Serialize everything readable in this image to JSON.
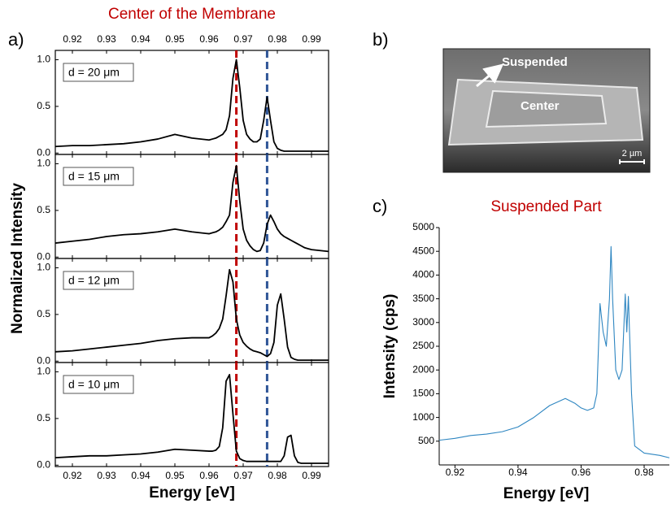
{
  "panel_labels": [
    "a)",
    "b)",
    "c)"
  ],
  "sem_image": {
    "labels": [
      "Suspended",
      "Center"
    ],
    "scale_bar": "2 µm"
  },
  "chart_data": [
    {
      "type": "line",
      "title": "Center of the Membrane",
      "ylabel": "Normalized Intensity",
      "annotation": "d = 20 μm",
      "top_tick_labels": true,
      "bottom_tick_labels": false,
      "color": "#000000",
      "xlim": [
        0.915,
        0.995
      ],
      "xticks": [
        0.92,
        0.93,
        0.94,
        0.95,
        0.96,
        0.97,
        0.98,
        0.99
      ],
      "ylim": [
        -0.015,
        1.1
      ],
      "yticks": [
        {
          "value": 0,
          "label": "0.0"
        },
        0.5,
        {
          "value": 1,
          "label": "1.0"
        }
      ],
      "vlines": [
        {
          "x": 0.968,
          "color": "#c00000"
        },
        {
          "x": 0.977,
          "color": "#2f5597"
        }
      ],
      "x": [
        0.915,
        0.92,
        0.925,
        0.93,
        0.935,
        0.94,
        0.945,
        0.95,
        0.955,
        0.96,
        0.961,
        0.962,
        0.963,
        0.964,
        0.965,
        0.966,
        0.967,
        0.968,
        0.969,
        0.97,
        0.971,
        0.972,
        0.973,
        0.974,
        0.975,
        0.976,
        0.977,
        0.978,
        0.979,
        0.98,
        0.981,
        0.982,
        0.983,
        0.984,
        0.985,
        0.986,
        0.987,
        0.988,
        0.989,
        0.99,
        0.995
      ],
      "values": [
        0.07,
        0.08,
        0.08,
        0.09,
        0.1,
        0.12,
        0.15,
        0.2,
        0.16,
        0.14,
        0.15,
        0.16,
        0.18,
        0.2,
        0.25,
        0.4,
        0.8,
        1.0,
        0.7,
        0.35,
        0.2,
        0.15,
        0.12,
        0.12,
        0.15,
        0.35,
        0.6,
        0.35,
        0.12,
        0.05,
        0.03,
        0.02,
        0.02,
        0.02,
        0.02,
        0.02,
        0.02,
        0.02,
        0.02,
        0.02,
        0.02
      ]
    },
    {
      "type": "line",
      "annotation": "d = 15 μm",
      "top_tick_labels": false,
      "bottom_tick_labels": false,
      "color": "#000000",
      "xlim": [
        0.915,
        0.995
      ],
      "xticks": [
        0.92,
        0.93,
        0.94,
        0.95,
        0.96,
        0.97,
        0.98,
        0.99
      ],
      "ylim": [
        -0.015,
        1.1
      ],
      "yticks": [
        {
          "value": 0,
          "label": "0.0"
        },
        0.5,
        {
          "value": 1,
          "label": "1.0"
        }
      ],
      "vlines": [
        {
          "x": 0.968,
          "color": "#c00000"
        },
        {
          "x": 0.977,
          "color": "#2f5597"
        }
      ],
      "x": [
        0.915,
        0.92,
        0.925,
        0.93,
        0.935,
        0.94,
        0.945,
        0.95,
        0.955,
        0.96,
        0.961,
        0.962,
        0.963,
        0.964,
        0.965,
        0.966,
        0.967,
        0.968,
        0.969,
        0.97,
        0.971,
        0.972,
        0.973,
        0.974,
        0.975,
        0.976,
        0.977,
        0.978,
        0.979,
        0.98,
        0.981,
        0.982,
        0.983,
        0.984,
        0.985,
        0.986,
        0.987,
        0.988,
        0.989,
        0.99,
        0.995
      ],
      "values": [
        0.15,
        0.17,
        0.19,
        0.22,
        0.24,
        0.25,
        0.27,
        0.3,
        0.27,
        0.25,
        0.26,
        0.27,
        0.29,
        0.32,
        0.38,
        0.45,
        0.8,
        0.98,
        0.6,
        0.3,
        0.18,
        0.12,
        0.08,
        0.06,
        0.07,
        0.15,
        0.35,
        0.45,
        0.38,
        0.3,
        0.25,
        0.22,
        0.2,
        0.18,
        0.16,
        0.14,
        0.12,
        0.1,
        0.09,
        0.08,
        0.06
      ]
    },
    {
      "type": "line",
      "annotation": "d = 12 μm",
      "top_tick_labels": false,
      "bottom_tick_labels": false,
      "color": "#000000",
      "xlim": [
        0.915,
        0.995
      ],
      "xticks": [
        0.92,
        0.93,
        0.94,
        0.95,
        0.96,
        0.97,
        0.98,
        0.99
      ],
      "ylim": [
        -0.015,
        1.1
      ],
      "yticks": [
        {
          "value": 0,
          "label": "0.0"
        },
        0.5,
        {
          "value": 1,
          "label": "1.0"
        }
      ],
      "vlines": [
        {
          "x": 0.968,
          "color": "#c00000"
        },
        {
          "x": 0.977,
          "color": "#2f5597"
        }
      ],
      "x": [
        0.915,
        0.92,
        0.925,
        0.93,
        0.935,
        0.94,
        0.945,
        0.95,
        0.955,
        0.96,
        0.961,
        0.962,
        0.963,
        0.964,
        0.965,
        0.966,
        0.967,
        0.968,
        0.969,
        0.97,
        0.971,
        0.972,
        0.973,
        0.974,
        0.975,
        0.976,
        0.977,
        0.978,
        0.979,
        0.98,
        0.981,
        0.982,
        0.983,
        0.984,
        0.985,
        0.986,
        0.987,
        0.988,
        0.989,
        0.99,
        0.995
      ],
      "values": [
        0.1,
        0.11,
        0.13,
        0.15,
        0.17,
        0.19,
        0.22,
        0.24,
        0.25,
        0.25,
        0.27,
        0.3,
        0.35,
        0.45,
        0.7,
        0.98,
        0.85,
        0.45,
        0.28,
        0.2,
        0.16,
        0.13,
        0.11,
        0.1,
        0.09,
        0.07,
        0.05,
        0.08,
        0.2,
        0.6,
        0.72,
        0.45,
        0.15,
        0.04,
        0.02,
        0.01,
        0.01,
        0.01,
        0.01,
        0.01,
        0.01
      ]
    },
    {
      "type": "line",
      "xlabel": "Energy [eV]",
      "annotation": "d = 10 μm",
      "top_tick_labels": false,
      "bottom_tick_labels": true,
      "color": "#000000",
      "xlim": [
        0.915,
        0.995
      ],
      "xticks": [
        0.92,
        0.93,
        0.94,
        0.95,
        0.96,
        0.97,
        0.98,
        0.99
      ],
      "ylim": [
        -0.015,
        1.1
      ],
      "yticks": [
        {
          "value": 0,
          "label": "0.0"
        },
        0.5,
        {
          "value": 1,
          "label": "1.0"
        }
      ],
      "vlines": [
        {
          "x": 0.968,
          "color": "#c00000"
        },
        {
          "x": 0.977,
          "color": "#2f5597"
        }
      ],
      "x": [
        0.915,
        0.92,
        0.925,
        0.93,
        0.935,
        0.94,
        0.945,
        0.95,
        0.955,
        0.96,
        0.961,
        0.962,
        0.963,
        0.964,
        0.965,
        0.966,
        0.967,
        0.968,
        0.969,
        0.97,
        0.971,
        0.972,
        0.973,
        0.974,
        0.975,
        0.976,
        0.977,
        0.978,
        0.979,
        0.98,
        0.981,
        0.982,
        0.983,
        0.984,
        0.985,
        0.986,
        0.987,
        0.988,
        0.989,
        0.99,
        0.995
      ],
      "values": [
        0.08,
        0.09,
        0.1,
        0.1,
        0.11,
        0.12,
        0.14,
        0.17,
        0.16,
        0.15,
        0.15,
        0.16,
        0.2,
        0.4,
        0.9,
        0.97,
        0.55,
        0.15,
        0.07,
        0.05,
        0.04,
        0.04,
        0.04,
        0.04,
        0.04,
        0.04,
        0.04,
        0.04,
        0.04,
        0.04,
        0.04,
        0.1,
        0.3,
        0.32,
        0.1,
        0.03,
        0.02,
        0.02,
        0.02,
        0.02,
        0.02
      ]
    },
    {
      "type": "line",
      "title": "Suspended Part",
      "xlabel": "Energy [eV]",
      "ylabel": "Intensity (cps)",
      "top_tick_labels": false,
      "bottom_tick_labels": true,
      "color": "#2e86c1",
      "xlim": [
        0.915,
        0.988
      ],
      "xticks": [
        0.92,
        0.94,
        0.96,
        0.98
      ],
      "ylim": [
        0,
        5000
      ],
      "yticks": [
        500,
        1000,
        1500,
        2000,
        2500,
        3000,
        3500,
        4000,
        4500,
        5000
      ],
      "x": [
        0.915,
        0.92,
        0.925,
        0.93,
        0.935,
        0.94,
        0.945,
        0.95,
        0.955,
        0.958,
        0.96,
        0.962,
        0.964,
        0.965,
        0.966,
        0.967,
        0.968,
        0.969,
        0.9695,
        0.97,
        0.971,
        0.972,
        0.973,
        0.974,
        0.9745,
        0.975,
        0.976,
        0.977,
        0.98,
        0.985,
        0.988
      ],
      "values": [
        520,
        560,
        620,
        650,
        700,
        800,
        1000,
        1250,
        1400,
        1300,
        1200,
        1150,
        1200,
        1500,
        3400,
        2800,
        2500,
        3500,
        4600,
        3500,
        2000,
        1800,
        2000,
        3600,
        2800,
        3550,
        1500,
        400,
        250,
        200,
        150
      ]
    }
  ]
}
